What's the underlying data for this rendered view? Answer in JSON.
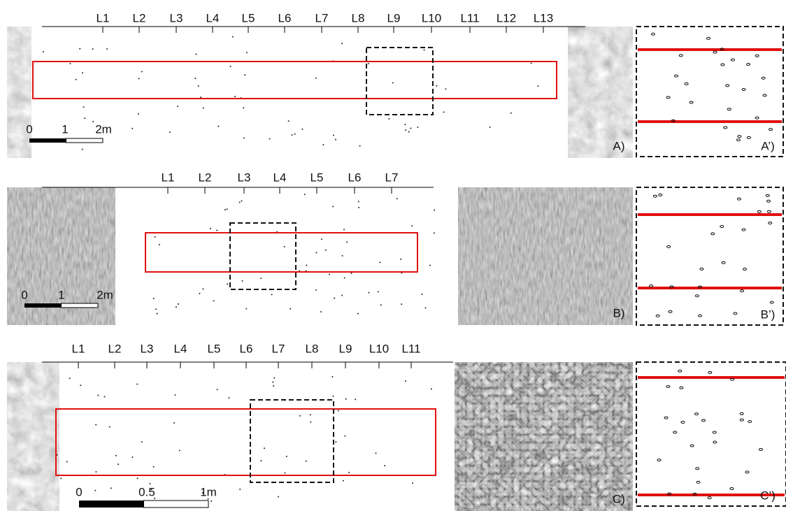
{
  "panels": [
    {
      "label": "A)",
      "inset_label": "A’)",
      "lines": [
        "L1",
        "L2",
        "L3",
        "L4",
        "L5",
        "L6",
        "L7",
        "L8",
        "L9",
        "L10",
        "L11",
        "L12",
        "L13"
      ],
      "scale": [
        "0",
        "1",
        "2m"
      ]
    },
    {
      "label": "B)",
      "inset_label": "B’)",
      "lines": [
        "L1",
        "L2",
        "L3",
        "L4",
        "L5",
        "L6",
        "L7"
      ],
      "scale": [
        "0",
        "1",
        "2m"
      ]
    },
    {
      "label": "C)",
      "inset_label": "C’)",
      "lines": [
        "L1",
        "L2",
        "L3",
        "L4",
        "L5",
        "L6",
        "L7",
        "L8",
        "L9",
        "L10",
        "L11"
      ],
      "scale": [
        "0",
        "0.5",
        "1m"
      ]
    }
  ]
}
